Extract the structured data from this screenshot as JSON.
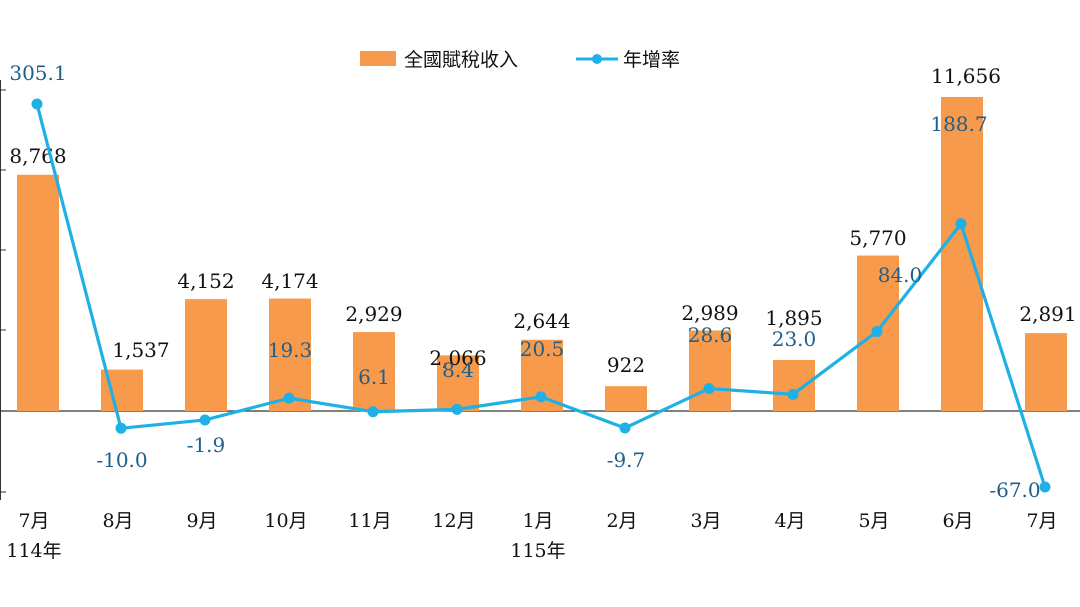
{
  "chart_data": {
    "type": "bar+line",
    "categories": [
      "7月",
      "8月",
      "9月",
      "10月",
      "11月",
      "12月",
      "1月",
      "2月",
      "3月",
      "4月",
      "5月",
      "6月",
      "7月"
    ],
    "year_labels": [
      {
        "index": 0,
        "label": "114年"
      },
      {
        "index": 6,
        "label": "115年"
      }
    ],
    "series": [
      {
        "name": "全國賦稅收入",
        "type": "bar",
        "color": "#f79a4b",
        "values": [
          8768,
          1537,
          4152,
          4174,
          2929,
          2066,
          2644,
          922,
          2989,
          1895,
          5770,
          11656,
          2891
        ],
        "labels": [
          "8,768",
          "1,537",
          "4,152",
          "4,174",
          "2,929",
          "2,066",
          "2,644",
          "922",
          "2,989",
          "1,895",
          "5,770",
          "11,656",
          "2,891"
        ]
      },
      {
        "name": "年增率",
        "type": "line",
        "color": "#1fb0e6",
        "label_color": "#1f5f8b",
        "values": [
          305.1,
          -10.0,
          -1.9,
          19.3,
          6.1,
          8.4,
          20.5,
          -9.7,
          28.6,
          23.0,
          84.0,
          188.7,
          -67.0
        ],
        "labels": [
          "305.1",
          "-10.0",
          "-1.9",
          "19.3",
          "6.1",
          "8.4",
          "20.5",
          "-9.7",
          "28.6",
          "23.0",
          "84.0",
          "188.7",
          "-67.0"
        ]
      }
    ],
    "bar_ylim": [
      -3000,
      12000
    ],
    "line_ylim": [
      -100,
      350
    ],
    "legend": "top-center",
    "grid": false
  }
}
